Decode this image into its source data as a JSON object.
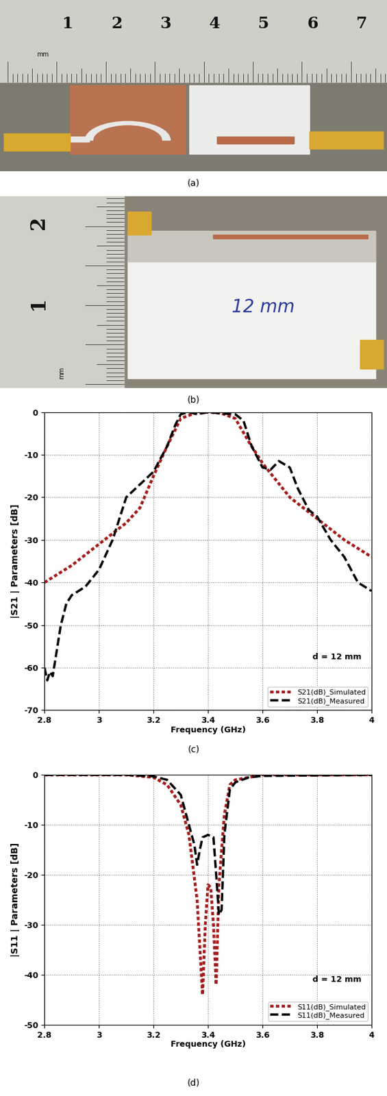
{
  "photos": [
    {
      "caption": "(a)",
      "ruler_numbers": [
        "1",
        "2",
        "3",
        "4",
        "5",
        "6",
        "7"
      ],
      "ruler_unit": "mm"
    },
    {
      "caption": "(b)",
      "ruler_numbers": [
        "2",
        "1"
      ],
      "ruler_unit": "mm",
      "handwriting": "12 mm"
    }
  ],
  "chart_data": [
    {
      "type": "line",
      "caption": "(c)",
      "x_label": "Frequency (GHz)",
      "y_label": "|S21 | Parameters [dB]",
      "annotations": [
        "d = 12 mm"
      ],
      "xlim": [
        2.8,
        4
      ],
      "xticks": [
        2.8,
        3,
        3.2,
        3.4,
        3.6,
        3.8,
        4
      ],
      "ylim": [
        -70,
        0
      ],
      "yticks": [
        -70,
        -60,
        -50,
        -40,
        -30,
        -20,
        -10,
        0
      ],
      "grid": true,
      "legend": "lower right",
      "series": [
        {
          "name": "S21(dB)_Simulated",
          "color": "#a51c1c",
          "line_style": "dotted",
          "x": [
            2.8,
            2.85,
            2.9,
            3.0,
            3.1,
            3.15,
            3.2,
            3.25,
            3.3,
            3.35,
            3.4,
            3.45,
            3.5,
            3.55,
            3.6,
            3.65,
            3.7,
            3.8,
            3.9,
            4.0
          ],
          "values": [
            -40,
            -38,
            -36,
            -31,
            -26,
            -22.5,
            -15,
            -8,
            -1.5,
            -0.3,
            0,
            -0.3,
            -1.5,
            -7,
            -12,
            -16,
            -20,
            -25,
            -30,
            -34
          ]
        },
        {
          "name": "S21(dB)_Measured",
          "color": "#000000",
          "line_style": "dashed",
          "x": [
            2.8,
            2.81,
            2.82,
            2.83,
            2.84,
            2.86,
            2.88,
            2.9,
            2.95,
            3.0,
            3.05,
            3.1,
            3.15,
            3.2,
            3.25,
            3.28,
            3.3,
            3.33,
            3.36,
            3.4,
            3.45,
            3.5,
            3.53,
            3.56,
            3.6,
            3.63,
            3.66,
            3.7,
            3.73,
            3.77,
            3.8,
            3.85,
            3.9,
            3.95,
            4.0
          ],
          "values": [
            -60,
            -63,
            -61,
            -62,
            -58,
            -50,
            -45,
            -43,
            -41,
            -37,
            -30,
            -20,
            -17,
            -14,
            -8,
            -3,
            -0.5,
            0,
            -0.5,
            0,
            -0.3,
            -0.5,
            -2,
            -8,
            -13,
            -13.5,
            -11.5,
            -13,
            -18,
            -23,
            -24.5,
            -30,
            -34,
            -40,
            -42
          ]
        }
      ]
    },
    {
      "type": "line",
      "caption": "(d)",
      "x_label": "Frequency (GHz)",
      "y_label": "|S11 | Parameters [dB]",
      "annotations": [
        "d = 12 mm"
      ],
      "xlim": [
        2.8,
        4
      ],
      "xticks": [
        2.8,
        3,
        3.2,
        3.4,
        3.6,
        3.8,
        4
      ],
      "ylim": [
        -50,
        0
      ],
      "yticks": [
        -50,
        -40,
        -30,
        -20,
        -10,
        0
      ],
      "grid": true,
      "legend": "lower right",
      "series": [
        {
          "name": "S11(dB)_Simulated",
          "color": "#a51c1c",
          "line_style": "dotted",
          "x": [
            2.8,
            3.1,
            3.2,
            3.25,
            3.3,
            3.33,
            3.36,
            3.38,
            3.39,
            3.4,
            3.41,
            3.42,
            3.43,
            3.44,
            3.46,
            3.48,
            3.5,
            3.6,
            4.0
          ],
          "values": [
            0,
            0,
            -0.5,
            -2,
            -6,
            -12,
            -25,
            -44,
            -30,
            -22,
            -22.5,
            -30,
            -42,
            -22,
            -8,
            -2,
            -1,
            0,
            0
          ]
        },
        {
          "name": "S11(dB)_Measured",
          "color": "#000000",
          "line_style": "dashed",
          "x": [
            2.8,
            3.1,
            3.2,
            3.25,
            3.3,
            3.33,
            3.35,
            3.36,
            3.37,
            3.38,
            3.4,
            3.42,
            3.43,
            3.44,
            3.45,
            3.46,
            3.48,
            3.5,
            3.55,
            3.6,
            4.0
          ],
          "values": [
            0,
            0,
            -0.3,
            -1,
            -4,
            -10,
            -14,
            -18,
            -15,
            -12.5,
            -12,
            -12.5,
            -20,
            -28,
            -27,
            -12,
            -3,
            -1.5,
            -0.5,
            -0.2,
            0
          ]
        }
      ]
    }
  ]
}
